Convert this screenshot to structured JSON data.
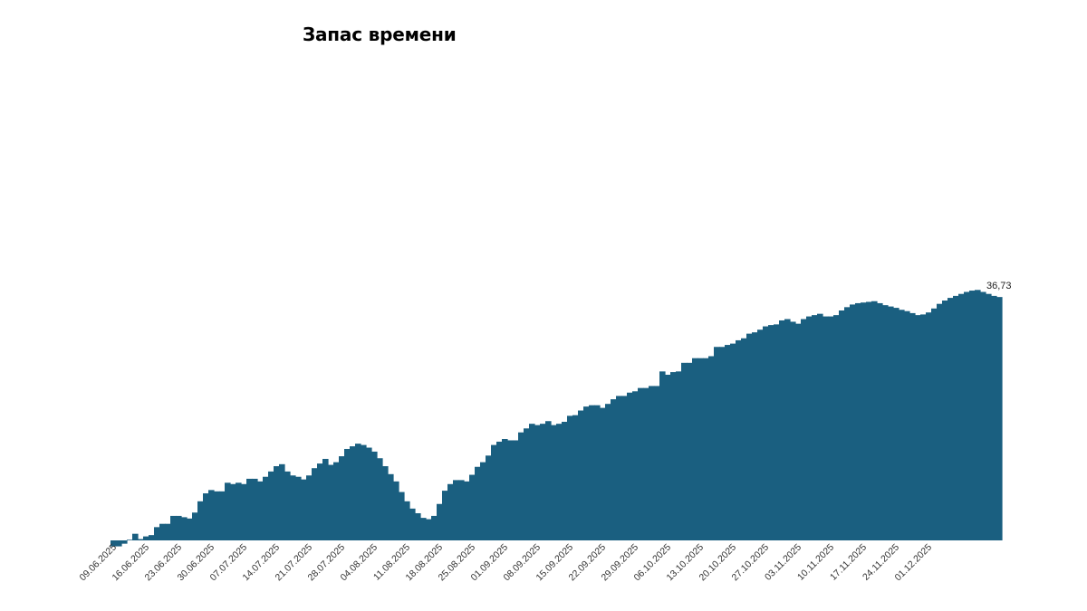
{
  "chart_data": {
    "type": "area",
    "title": "Запас времени",
    "xlabel": "",
    "ylabel": "",
    "color": "#1a5f80",
    "x_ticks": [
      "09.06.2025",
      "16.06.2025",
      "23.06.2025",
      "30.06.2025",
      "07.07.2025",
      "14.07.2025",
      "21.07.2025",
      "28.07.2025",
      "04.08.2025",
      "11.08.2025",
      "18.08.2025",
      "25.08.2025",
      "01.09.2025",
      "08.09.2025",
      "15.09.2025",
      "22.09.2025",
      "29.09.2025",
      "06.10.2025",
      "13.10.2025",
      "20.10.2025",
      "27.10.2025",
      "03.11.2025",
      "10.11.2025",
      "17.11.2025",
      "24.11.2025",
      "01.12.2025"
    ],
    "x_start": "09.06.2025",
    "ylim": [
      0,
      70
    ],
    "grid": false,
    "last_value_label": "36,73",
    "values": [
      -0.9,
      -0.9,
      -0.5,
      0.1,
      1.0,
      0.2,
      0.6,
      0.8,
      2.0,
      2.5,
      2.5,
      3.7,
      3.7,
      3.5,
      3.3,
      4.2,
      5.9,
      7.1,
      7.6,
      7.4,
      7.4,
      8.7,
      8.5,
      8.7,
      8.5,
      9.3,
      9.3,
      8.9,
      9.6,
      10.4,
      11.2,
      11.5,
      10.4,
      9.8,
      9.6,
      9.2,
      9.8,
      10.9,
      11.6,
      12.3,
      11.4,
      11.8,
      12.7,
      13.8,
      14.2,
      14.6,
      14.4,
      14.0,
      13.4,
      12.4,
      11.2,
      10.0,
      8.9,
      7.3,
      5.9,
      4.8,
      4.1,
      3.4,
      3.2,
      3.7,
      5.5,
      7.5,
      8.5,
      9.1,
      9.1,
      8.9,
      9.9,
      11.1,
      11.8,
      12.8,
      14.4,
      14.9,
      15.3,
      15.1,
      15.1,
      16.3,
      16.9,
      17.6,
      17.4,
      17.6,
      18.0,
      17.4,
      17.6,
      17.9,
      18.8,
      18.9,
      19.6,
      20.2,
      20.4,
      20.4,
      20.0,
      20.6,
      21.3,
      21.8,
      21.8,
      22.3,
      22.5,
      23.0,
      23.0,
      23.3,
      23.3,
      25.5,
      25.0,
      25.4,
      25.5,
      26.8,
      26.8,
      27.5,
      27.5,
      27.5,
      27.8,
      29.2,
      29.2,
      29.5,
      29.7,
      30.2,
      30.5,
      31.2,
      31.4,
      31.8,
      32.3,
      32.5,
      32.6,
      33.2,
      33.4,
      33.0,
      32.7,
      33.4,
      33.8,
      34.0,
      34.2,
      33.8,
      33.8,
      34.0,
      34.7,
      35.2,
      35.6,
      35.8,
      35.9,
      36.0,
      36.1,
      35.8,
      35.5,
      35.3,
      35.1,
      34.8,
      34.6,
      34.3,
      34.0,
      34.1,
      34.4,
      35.0,
      35.7,
      36.2,
      36.6,
      36.9,
      37.2,
      37.5,
      37.7,
      37.8,
      37.5,
      37.2,
      36.9,
      36.73
    ]
  }
}
